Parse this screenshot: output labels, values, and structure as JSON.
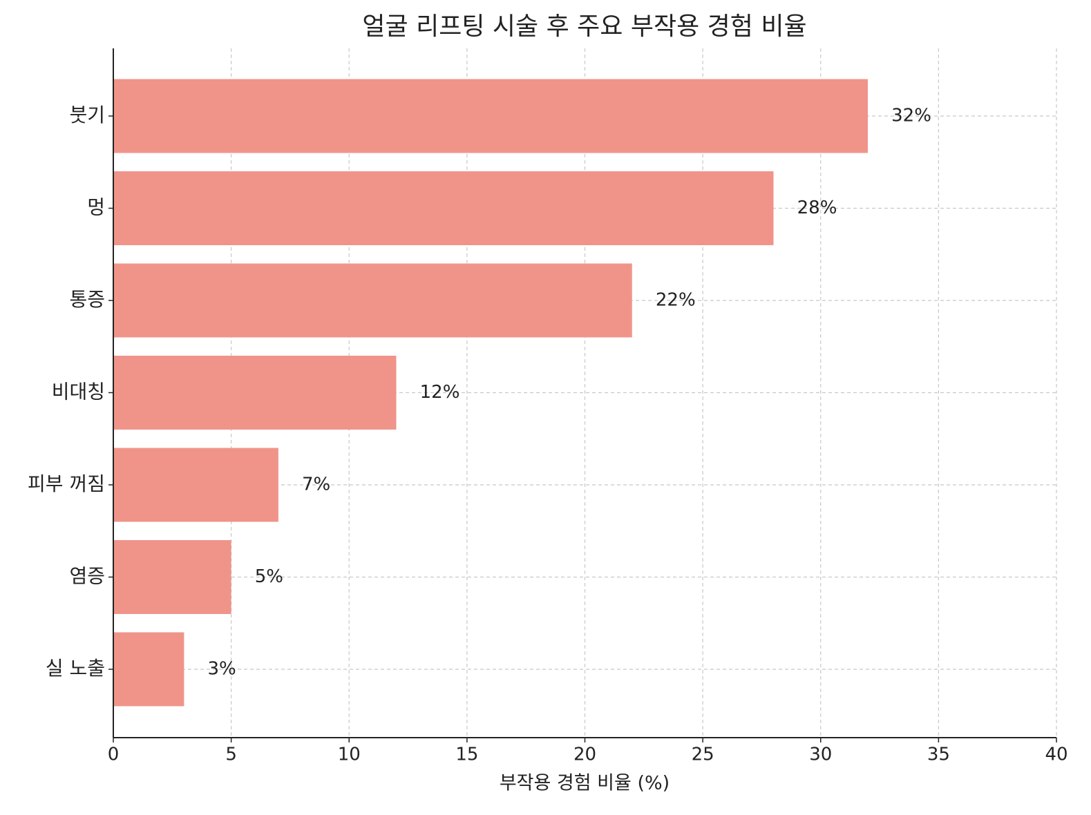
{
  "chart_data": {
    "type": "barh",
    "title": "얼굴 리프팅 시술 후 주요 부작용 경험 비율",
    "x_label": "부작용 경험 비율 (%)",
    "categories": [
      "붓기",
      "멍",
      "통증",
      "비대칭",
      "피부 꺼짐",
      "염증",
      "실 노출"
    ],
    "values": [
      32,
      28,
      22,
      12,
      7,
      5,
      3
    ],
    "value_labels": [
      "32%",
      "28%",
      "22%",
      "12%",
      "7%",
      "5%",
      "3%"
    ],
    "color": "#f0948a",
    "xlim": [
      0,
      40
    ],
    "xticks": [
      0,
      5,
      10,
      15,
      20,
      25,
      30,
      35,
      40
    ],
    "grid": true
  }
}
